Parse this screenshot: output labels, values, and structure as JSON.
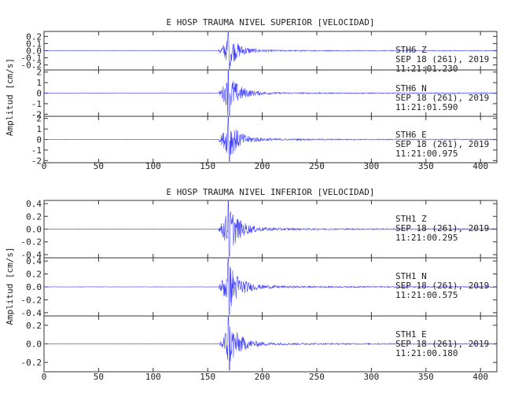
{
  "chart_data": [
    {
      "type": "line",
      "title": "E HOSP TRAUMA NIVEL SUPERIOR [VELOCIDAD]",
      "ylabel": "Amplitud [cm/s]",
      "xlim": [
        0,
        415
      ],
      "xticks": [
        0,
        50,
        100,
        150,
        200,
        250,
        300,
        350,
        400
      ],
      "event_onset_x": 160,
      "peak_x": 168,
      "series": [
        {
          "name": "STH6   Z",
          "date": "SEP 18 (261), 2019",
          "time": "11:21:01.230",
          "ylim": [
            -0.27,
            0.27
          ],
          "yticks": [
            -0.2,
            -0.1,
            0.0,
            0.1,
            0.2
          ],
          "ytick_labels": [
            "-0.2",
            "-0.1",
            "0.0",
            "0.1",
            "0.2"
          ],
          "peak": 0.27
        },
        {
          "name": "STH6   N",
          "date": "SEP 18 (261), 2019",
          "time": "11:21:01.590",
          "ylim": [
            -2.2,
            2.2
          ],
          "yticks": [
            -2,
            -1,
            0,
            1,
            2
          ],
          "ytick_labels": [
            "-2",
            "-1",
            "0",
            "1",
            "2"
          ],
          "peak": 2.2
        },
        {
          "name": "STH6   E",
          "date": "SEP 18 (261), 2019",
          "time": "11:21:00.975",
          "ylim": [
            -2.2,
            2.2
          ],
          "yticks": [
            -2,
            -1,
            0,
            1,
            2
          ],
          "ytick_labels": [
            "-2",
            "-1",
            "0",
            "1",
            "2"
          ],
          "peak": 2.2
        }
      ]
    },
    {
      "type": "line",
      "title": "E HOSP TRAUMA NIVEL INFERIOR [VELOCIDAD]",
      "ylabel": "Amplitud [cm/s]",
      "xlim": [
        0,
        415
      ],
      "xticks": [
        0,
        50,
        100,
        150,
        200,
        250,
        300,
        350,
        400
      ],
      "event_onset_x": 160,
      "peak_x": 168,
      "series": [
        {
          "name": "STH1   Z",
          "date": "SEP 18 (261), 2019",
          "time": "11:21:00.295",
          "ylim": [
            -0.45,
            0.45
          ],
          "yticks": [
            -0.4,
            -0.2,
            0.0,
            0.2,
            0.4
          ],
          "ytick_labels": [
            "-0.4",
            "-0.2",
            "0.0",
            "0.2",
            "0.4"
          ],
          "peak": 0.45
        },
        {
          "name": "STH1   N",
          "date": "SEP 18 (261), 2019",
          "time": "11:21:00.575",
          "ylim": [
            -0.45,
            0.45
          ],
          "yticks": [
            -0.4,
            -0.2,
            0.0,
            0.2,
            0.4
          ],
          "ytick_labels": [
            "-0.4",
            "-0.2",
            "0.0",
            "0.2",
            "0.4"
          ],
          "peak": 0.45
        },
        {
          "name": "STH1   E",
          "date": "SEP 18 (261), 2019",
          "time": "11:21:00.180",
          "ylim": [
            -0.3,
            0.3
          ],
          "yticks": [
            -0.2,
            0.0,
            0.2
          ],
          "ytick_labels": [
            "-0.2",
            "0.0",
            "0.2"
          ],
          "peak": 0.3
        }
      ]
    }
  ],
  "colors": {
    "trace": "#3d3dff",
    "axis": "#333333",
    "text": "#222222"
  }
}
